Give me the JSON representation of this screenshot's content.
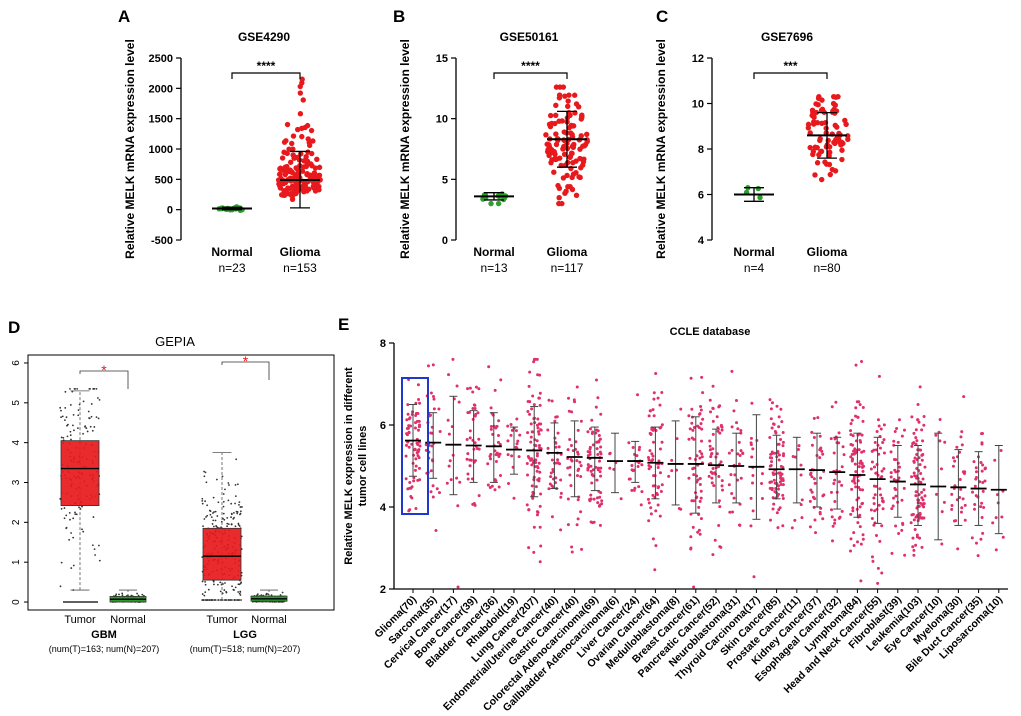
{
  "chart_data": [
    {
      "panel": "A",
      "type": "scatter",
      "title": "GSE4290",
      "ylabel": "Relative MELK mRNA expression level",
      "ylim": [
        -500,
        2500
      ],
      "yticks": [
        "-500",
        "0",
        "500",
        "1000",
        "1500",
        "2000",
        "2500"
      ],
      "categories": [
        "Normal",
        "Glioma"
      ],
      "counts": [
        "n=23",
        "n=153"
      ],
      "group_colors": [
        "#2ca02c",
        "#e8191c"
      ],
      "groups": [
        {
          "name": "Normal",
          "n": 23,
          "mean": 20,
          "sd_low": 0,
          "sd_high": 40,
          "min": -20,
          "max": 130
        },
        {
          "name": "Glioma",
          "n": 153,
          "mean": 490,
          "sd_low": 30,
          "sd_high": 960,
          "min": 0,
          "max": 2150
        }
      ],
      "significance": "****"
    },
    {
      "panel": "B",
      "type": "scatter",
      "title": "GSE50161",
      "ylabel": "Relative MELK mRNA expression level",
      "ylim": [
        0,
        15
      ],
      "yticks": [
        "0",
        "5",
        "10",
        "15"
      ],
      "categories": [
        "Normal",
        "Glioma"
      ],
      "counts": [
        "n=13",
        "n=117"
      ],
      "group_colors": [
        "#2ca02c",
        "#e8191c"
      ],
      "groups": [
        {
          "name": "Normal",
          "n": 13,
          "mean": 3.6,
          "sd_low": 3.3,
          "sd_high": 3.9,
          "min": 3.0,
          "max": 4.3
        },
        {
          "name": "Glioma",
          "n": 117,
          "mean": 8.3,
          "sd_low": 6.0,
          "sd_high": 10.6,
          "min": 3.0,
          "max": 12.6
        }
      ],
      "significance": "****"
    },
    {
      "panel": "C",
      "type": "scatter",
      "title": "GSE7696",
      "ylabel": "Relative MELK mRNA expression level",
      "ylim": [
        4,
        12
      ],
      "yticks": [
        "4",
        "6",
        "8",
        "10",
        "12"
      ],
      "categories": [
        "Normal",
        "Glioma"
      ],
      "counts": [
        "n=4",
        "n=80"
      ],
      "group_colors": [
        "#2ca02c",
        "#e8191c"
      ],
      "groups": [
        {
          "name": "Normal",
          "n": 4,
          "mean": 6.0,
          "sd_low": 5.7,
          "sd_high": 6.3,
          "min": 5.7,
          "max": 6.3
        },
        {
          "name": "Glioma",
          "n": 80,
          "mean": 8.6,
          "sd_low": 7.6,
          "sd_high": 9.6,
          "min": 6.3,
          "max": 10.3
        }
      ],
      "significance": "***"
    },
    {
      "panel": "D",
      "type": "box",
      "title": "GEPIA",
      "ylim": [
        -0.2,
        6.2
      ],
      "yticks": [
        "0",
        "1",
        "2",
        "3",
        "4",
        "5",
        "6"
      ],
      "boxes": [
        {
          "dataset": "GBM",
          "label": "Tumor",
          "q1": 2.42,
          "median": 3.35,
          "q3": 4.05,
          "whisker_low": 0.3,
          "whisker_high": 5.3,
          "n": 163,
          "color": "#e8191c"
        },
        {
          "dataset": "GBM",
          "label": "Normal",
          "q1": 0.0,
          "median": 0.07,
          "q3": 0.14,
          "whisker_low": 0.0,
          "whisker_high": 0.3,
          "n": 207,
          "color": "#2ca02c"
        },
        {
          "dataset": "LGG",
          "label": "Tumor",
          "q1": 0.55,
          "median": 1.15,
          "q3": 1.85,
          "whisker_low": 0.05,
          "whisker_high": 3.75,
          "n": 518,
          "color": "#e8191c"
        },
        {
          "dataset": "LGG",
          "label": "Normal",
          "q1": 0.02,
          "median": 0.08,
          "q3": 0.15,
          "whisker_low": 0.0,
          "whisker_high": 0.3,
          "n": 207,
          "color": "#2ca02c"
        }
      ],
      "datasets": [
        {
          "name": "GBM",
          "counts": "(num(T)=163; num(N)=207)"
        },
        {
          "name": "LGG",
          "counts": "(num(T)=518; num(N)=207)"
        }
      ],
      "significance": "*"
    },
    {
      "panel": "E",
      "type": "scatter",
      "title": "CCLE database",
      "ylabel_line1": "Relative MELK expression in different",
      "ylabel_line2": "tumor cell lines",
      "ylim": [
        2,
        8
      ],
      "yticks": [
        "2",
        "4",
        "6",
        "8"
      ],
      "highlight": "Glioma(70)",
      "highlight_color": "#2038d0",
      "point_color": "#e0306a",
      "categories": [
        "Glioma(70)",
        "Sarcoma(35)",
        "Cervical Cancer(17)",
        "Bone Cancer(39)",
        "Bladder Cancer(36)",
        "Rhabdoid(19)",
        "Lung Cancer(207)",
        "Endometrial/Uterine Cancer(40)",
        "Gastric Cancer(40)",
        "Colorectal Adenocarcinoma(69)",
        "Gallbladder Adenocarcinoma(6)",
        "Liver Cancer(24)",
        "Ovarian Cancer(64)",
        "Medulloblastoma(8)",
        "Breast Cancer(61)",
        "Pancreatic Cancer(52)",
        "Neuroblastoma(31)",
        "Thyroid Carcinoma(17)",
        "Skin Cancer(85)",
        "Prostate Cancer(11)",
        "Kidney Cancer(37)",
        "Esophageal Cancer(32)",
        "Lymphoma(84)",
        "Head and Neck Cancer(55)",
        "Fibroblast(39)",
        "Leukemia(103)",
        "Eye Cancer(10)",
        "Myeloma(30)",
        "Bile Duct Cancer(35)",
        "Liposarcoma(10)"
      ],
      "means": [
        5.62,
        5.57,
        5.52,
        5.5,
        5.48,
        5.4,
        5.38,
        5.32,
        5.22,
        5.2,
        5.12,
        5.12,
        5.08,
        5.05,
        5.05,
        5.02,
        5.0,
        4.98,
        4.92,
        4.92,
        4.9,
        4.85,
        4.78,
        4.68,
        4.62,
        4.55,
        4.5,
        4.48,
        4.45,
        4.42
      ],
      "sd_low": [
        4.75,
        4.7,
        4.3,
        4.6,
        4.6,
        4.8,
        4.25,
        4.45,
        4.25,
        4.4,
        4.35,
        4.6,
        4.2,
        4.05,
        3.85,
        4.1,
        4.1,
        3.7,
        4.2,
        4.1,
        4.0,
        3.95,
        3.75,
        3.6,
        3.75,
        3.55,
        3.2,
        3.55,
        3.55,
        3.35
      ],
      "sd_high": [
        6.5,
        6.3,
        6.7,
        6.35,
        6.3,
        5.95,
        6.45,
        6.05,
        6.1,
        5.95,
        5.8,
        5.6,
        5.95,
        6.1,
        6.2,
        5.9,
        5.8,
        6.25,
        5.75,
        5.7,
        5.8,
        5.7,
        5.8,
        5.7,
        5.5,
        5.5,
        5.8,
        5.4,
        5.35,
        5.5
      ],
      "counts": [
        70,
        35,
        17,
        39,
        36,
        19,
        207,
        40,
        40,
        69,
        6,
        24,
        64,
        8,
        61,
        52,
        31,
        17,
        85,
        11,
        37,
        32,
        84,
        55,
        39,
        103,
        10,
        30,
        35,
        10
      ]
    }
  ]
}
